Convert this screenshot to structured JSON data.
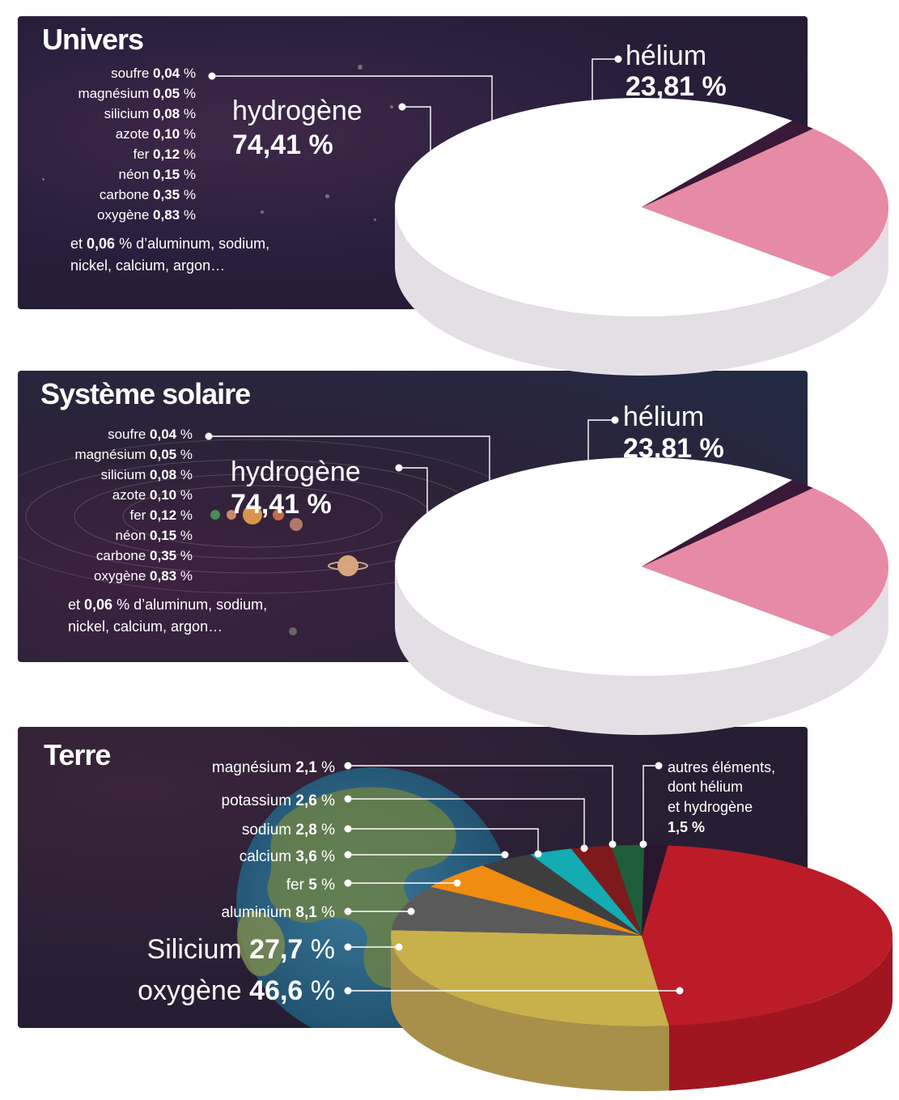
{
  "colors": {
    "helium": "#e78aa6",
    "hydrogene": "#ffffff",
    "others_slice": "#3a1838",
    "pie_side": "#e3dfe4",
    "oxygene": "#bb1c27",
    "silicium": "#c8b14a",
    "aluminium": "#5a5a5a",
    "fer": "#f08c10",
    "calcium": "#3e3e3e",
    "sodium": "#14abb3",
    "potassium": "#7e1a1c",
    "magnesium": "#1e5e3a",
    "autres": "#2a1530"
  },
  "univers": {
    "title": "Univers",
    "elements": [
      {
        "name": "soufre",
        "value": "0,04",
        "unit": "%"
      },
      {
        "name": "magnésium",
        "value": "0,05",
        "unit": "%"
      },
      {
        "name": "silicium",
        "value": "0,08",
        "unit": "%"
      },
      {
        "name": "azote",
        "value": "0,10",
        "unit": "%"
      },
      {
        "name": "fer",
        "value": "0,12",
        "unit": "%"
      },
      {
        "name": "néon",
        "value": "0,15",
        "unit": "%"
      },
      {
        "name": "carbone",
        "value": "0,35",
        "unit": "%"
      },
      {
        "name": "oxygène",
        "value": "0,83",
        "unit": "%"
      }
    ],
    "others_prefix": "et",
    "others_value": "0,06",
    "others_rest_1": "% d’aluminum, sodium,",
    "others_rest_2": "nickel, calcium, argon…",
    "hydrogene_label": "hydrogène",
    "hydrogene_value": "74,41 %",
    "helium_label": "hélium",
    "helium_value": "23,81 %"
  },
  "solaire": {
    "title": "Système solaire",
    "elements": [
      {
        "name": "soufre",
        "value": "0,04",
        "unit": "%"
      },
      {
        "name": "magnésium",
        "value": "0,05",
        "unit": "%"
      },
      {
        "name": "silicium",
        "value": "0,08",
        "unit": "%"
      },
      {
        "name": "azote",
        "value": "0,10",
        "unit": "%"
      },
      {
        "name": "fer",
        "value": "0,12",
        "unit": "%"
      },
      {
        "name": "néon",
        "value": "0,15",
        "unit": "%"
      },
      {
        "name": "carbone",
        "value": "0,35",
        "unit": "%"
      },
      {
        "name": "oxygène",
        "value": "0,83",
        "unit": "%"
      }
    ],
    "others_prefix": "et",
    "others_value": "0,06",
    "others_rest_1": "% d’aluminum, sodium,",
    "others_rest_2": "nickel, calcium, argon…",
    "hydrogene_label": "hydrogène",
    "hydrogene_value": "74,41 %",
    "helium_label": "hélium",
    "helium_value": "23,81 %"
  },
  "terre": {
    "title": "Terre",
    "labels": [
      {
        "key": "magnesium",
        "name": "magnésium",
        "value": "2,1",
        "unit": "%"
      },
      {
        "key": "potassium",
        "name": "potassium",
        "value": "2,6",
        "unit": "%"
      },
      {
        "key": "sodium",
        "name": "sodium",
        "value": "2,8",
        "unit": "%"
      },
      {
        "key": "calcium",
        "name": "calcium",
        "value": "3,6",
        "unit": "%"
      },
      {
        "key": "fer",
        "name": "fer",
        "value": "5",
        "unit": "%"
      },
      {
        "key": "aluminium",
        "name": "aluminium",
        "value": "8,1",
        "unit": "%"
      },
      {
        "key": "silicium",
        "name": "Silicium",
        "value": "27,7",
        "unit": "%"
      },
      {
        "key": "oxygene",
        "name": "oxygène",
        "value": "46,6",
        "unit": "%"
      }
    ],
    "autres_line1": "autres éléments,",
    "autres_line2": "dont hélium",
    "autres_line3": "et hydrogène",
    "autres_value": "1,5 %"
  },
  "chart_data": [
    {
      "type": "pie",
      "title": "Univers",
      "categories": [
        "hydrogène",
        "hélium",
        "soufre",
        "magnésium",
        "silicium",
        "azote",
        "fer",
        "néon",
        "carbone",
        "oxygène",
        "autres"
      ],
      "values": [
        74.41,
        23.81,
        0.04,
        0.05,
        0.08,
        0.1,
        0.12,
        0.15,
        0.35,
        0.83,
        0.06
      ]
    },
    {
      "type": "pie",
      "title": "Système solaire",
      "categories": [
        "hydrogène",
        "hélium",
        "soufre",
        "magnésium",
        "silicium",
        "azote",
        "fer",
        "néon",
        "carbone",
        "oxygène",
        "autres"
      ],
      "values": [
        74.41,
        23.81,
        0.04,
        0.05,
        0.08,
        0.1,
        0.12,
        0.15,
        0.35,
        0.83,
        0.06
      ]
    },
    {
      "type": "pie",
      "title": "Terre",
      "categories": [
        "oxygène",
        "Silicium",
        "aluminium",
        "fer",
        "calcium",
        "sodium",
        "potassium",
        "magnésium",
        "autres éléments"
      ],
      "values": [
        46.6,
        27.7,
        8.1,
        5,
        3.6,
        2.8,
        2.6,
        2.1,
        1.5
      ]
    }
  ]
}
